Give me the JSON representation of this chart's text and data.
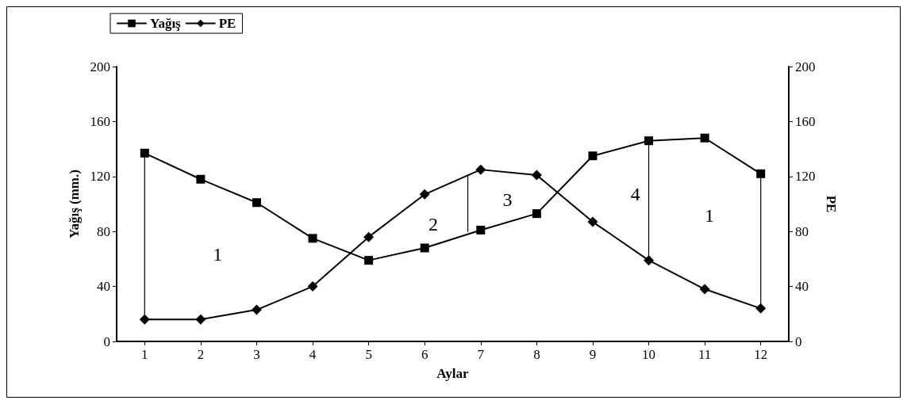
{
  "chart_data": {
    "type": "line",
    "xlabel": "Aylar",
    "ylabel": "Yağış (mm.)",
    "y2label": "PE",
    "x": [
      1,
      2,
      3,
      4,
      5,
      6,
      7,
      8,
      9,
      10,
      11,
      12
    ],
    "xlim": [
      0.5,
      12.5
    ],
    "xticks": [
      1,
      2,
      3,
      4,
      5,
      6,
      7,
      8,
      9,
      10,
      11,
      12
    ],
    "ylim": [
      0,
      200
    ],
    "yticks": [
      0,
      40,
      80,
      120,
      160,
      200
    ],
    "y2lim": [
      0,
      200
    ],
    "y2ticks": [
      0,
      40,
      80,
      120,
      160,
      200
    ],
    "series": [
      {
        "name": "Yağış",
        "color": "#000000",
        "marker": "square",
        "values": [
          137,
          118,
          101,
          75,
          59,
          68,
          81,
          93,
          135,
          146,
          148,
          122
        ]
      },
      {
        "name": "PE",
        "color": "#000000",
        "marker": "diamond",
        "axis": "y2",
        "values": [
          16,
          16,
          23,
          40,
          76,
          107,
          125,
          121,
          87,
          59,
          38,
          24
        ]
      },
      {
        "type": "line",
        "color": "#000000",
        "marker": "none",
        "x": [
          1,
          1
        ],
        "values": [
          16,
          137
        ]
      },
      {
        "type": "line",
        "color": "#000000",
        "marker": "none",
        "x": [
          6.77,
          6.77
        ],
        "values": [
          121,
          80
        ]
      },
      {
        "type": "line",
        "color": "#000000",
        "marker": "none",
        "x": [
          10,
          10
        ],
        "values": [
          146,
          59
        ]
      },
      {
        "type": "line",
        "color": "#000000",
        "marker": "none",
        "x": [
          12,
          12
        ],
        "values": [
          122,
          24
        ]
      }
    ],
    "annotations": [
      "1",
      "2",
      "3",
      "4",
      "1"
    ],
    "grid": false,
    "legend": "top left",
    "line_style": "solid"
  }
}
